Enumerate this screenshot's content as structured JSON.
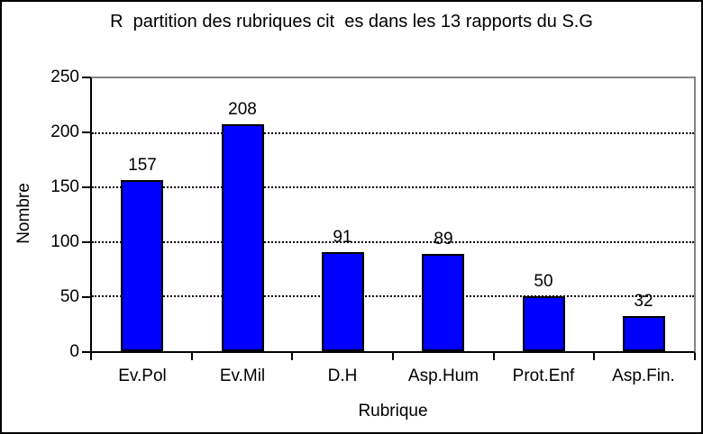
{
  "chart_data": {
    "type": "bar",
    "title": "R  partition des rubriques cit  es dans les 13 rapports du S.G",
    "categories": [
      "Ev.Pol",
      "Ev.Mil",
      "D.H",
      "Asp.Hum",
      "Prot.Enf",
      "Asp.Fin."
    ],
    "values": [
      157,
      208,
      91,
      89,
      50,
      32
    ],
    "data_labels": [
      "157",
      "208",
      "91",
      "89",
      "50",
      "32"
    ],
    "xlabel": "Rubrique",
    "ylabel": "Nombre",
    "ylim": [
      0,
      250
    ],
    "yticks": [
      0,
      50,
      100,
      150,
      200,
      250
    ],
    "grid": "horizontal-dotted",
    "legend": "none",
    "colors": {
      "bar_fill": "#0000ff",
      "bar_border": "#000000",
      "gridline": "#000000",
      "axis": "#000000",
      "plot_top_right_border": "#848484",
      "background": "#ffffff",
      "text": "#000000"
    }
  }
}
